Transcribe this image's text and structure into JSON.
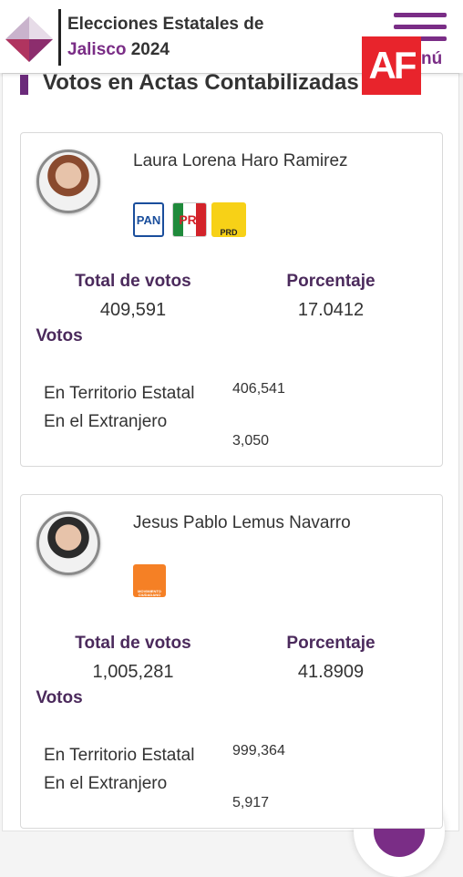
{
  "header": {
    "title_line1": "Elecciones Estatales de",
    "title_place": "Jalisco",
    "title_year": "2024",
    "menu": "nú",
    "watermark": "AF"
  },
  "section_title": "Votos en Actas Contabilizadas",
  "candidates": [
    {
      "name": "Laura Lorena Haro Ramirez",
      "parties": [
        "PAN",
        "PRI",
        "PRD"
      ],
      "total_label": "Total de votos",
      "total": "409,591",
      "percent_label": "Porcentaje",
      "percent": "17.0412",
      "votes_label": "Votos",
      "state_label": "En Territorio Estatal",
      "state": "406,541",
      "abroad_label": "En el Extranjero",
      "abroad": "3,050"
    },
    {
      "name": "Jesus Pablo Lemus Navarro",
      "parties": [
        "MOVIMIENTO CIUDADANO"
      ],
      "total_label": "Total de votos",
      "total": "1,005,281",
      "percent_label": "Porcentaje",
      "percent": "41.8909",
      "votes_label": "Votos",
      "state_label": "En Territorio Estatal",
      "state": "999,364",
      "abroad_label": "En el Extranjero",
      "abroad": "5,917"
    }
  ]
}
